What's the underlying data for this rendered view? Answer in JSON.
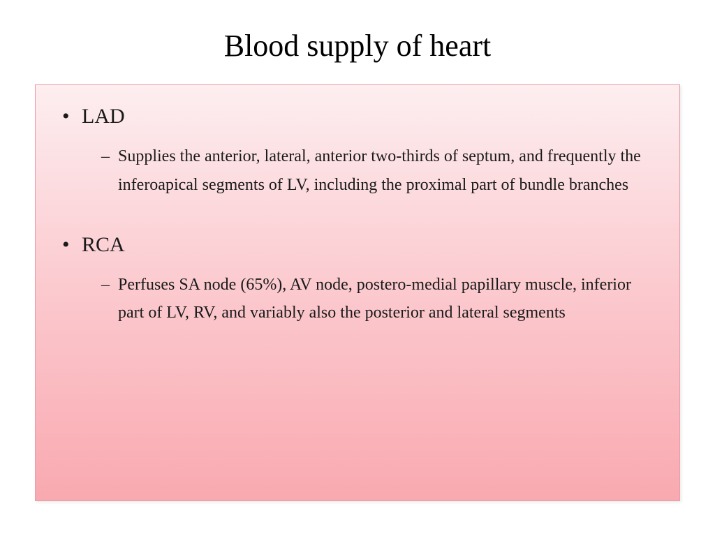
{
  "slide": {
    "title": "Blood supply of heart",
    "background_gradient_top": "#fdeef0",
    "background_gradient_mid": "#fbc9ce",
    "background_gradient_bottom": "#f9a9b0",
    "border_color": "#e89ca3",
    "title_fontsize": 44,
    "title_color": "#000000",
    "bullet_fontsize": 30,
    "subbullet_fontsize": 24,
    "text_color": "#1a1a1a",
    "font_family": "Georgia",
    "items": [
      {
        "label": "LAD",
        "sub": [
          "Supplies the anterior, lateral, anterior two-thirds of septum, and frequently the inferoapical segments of LV, including the proximal part of bundle branches"
        ]
      },
      {
        "label": "RCA",
        "sub": [
          "Perfuses SA node (65%), AV node, postero-medial papillary muscle, inferior part of LV, RV, and variably also the posterior and lateral segments"
        ]
      }
    ]
  }
}
